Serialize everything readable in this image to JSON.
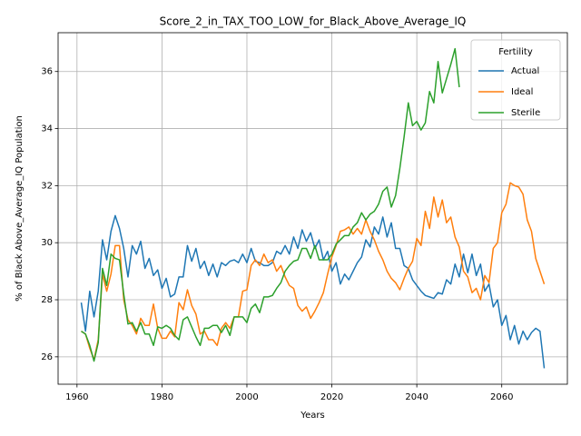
{
  "chart_data": {
    "type": "line",
    "title": "Score_2_in_TAX_TOO_LOW_for_Black_Above_Average_IQ",
    "x_label": "Years",
    "y_label": "% of Black Above_Average_IQ Population",
    "legend_title": "Fertility",
    "legend_position": "upper right",
    "grid": true,
    "xlim": [
      1955.55,
      2075.45
    ],
    "ylim": [
      25.04,
      37.36
    ],
    "xticks": [
      1960,
      1980,
      2000,
      2020,
      2040,
      2060
    ],
    "yticks": [
      26,
      28,
      30,
      32,
      34,
      36
    ],
    "x": [
      1961,
      1962,
      1963,
      1964,
      1965,
      1966,
      1967,
      1968,
      1969,
      1970,
      1971,
      1972,
      1973,
      1974,
      1975,
      1976,
      1977,
      1978,
      1979,
      1980,
      1981,
      1982,
      1983,
      1984,
      1985,
      1986,
      1987,
      1988,
      1989,
      1990,
      1991,
      1992,
      1993,
      1994,
      1995,
      1996,
      1997,
      1998,
      1999,
      2000,
      2001,
      2002,
      2003,
      2004,
      2005,
      2006,
      2007,
      2008,
      2009,
      2010,
      2011,
      2012,
      2013,
      2014,
      2015,
      2016,
      2017,
      2018,
      2019,
      2020,
      2021,
      2022,
      2023,
      2024,
      2025,
      2026,
      2027,
      2028,
      2029,
      2030,
      2031,
      2032,
      2033,
      2034,
      2035,
      2036,
      2037,
      2038,
      2039,
      2040,
      2041,
      2042,
      2043,
      2044,
      2045,
      2046,
      2047,
      2048,
      2049,
      2050,
      2051,
      2052,
      2053,
      2054,
      2055,
      2056,
      2057,
      2058,
      2059,
      2060,
      2061,
      2062,
      2063,
      2064,
      2065,
      2066,
      2067,
      2068,
      2069,
      2070
    ],
    "series": [
      {
        "name": "Actual",
        "color": "#1f77b4",
        "values": [
          27.9,
          26.9,
          28.3,
          27.4,
          28.3,
          30.1,
          29.4,
          30.4,
          30.95,
          30.5,
          29.8,
          28.8,
          29.9,
          29.6,
          30.05,
          29.1,
          29.45,
          28.85,
          29.05,
          28.4,
          28.75,
          28.1,
          28.2,
          28.8,
          28.8,
          29.9,
          29.35,
          29.8,
          29.1,
          29.35,
          28.85,
          29.25,
          28.8,
          29.3,
          29.2,
          29.35,
          29.4,
          29.3,
          29.6,
          29.3,
          29.8,
          29.35,
          29.3,
          29.2,
          29.2,
          29.3,
          29.7,
          29.6,
          29.9,
          29.6,
          30.2,
          29.8,
          30.45,
          30.05,
          30.35,
          29.8,
          30.1,
          29.4,
          29.7,
          29.0,
          29.3,
          28.55,
          28.9,
          28.7,
          29.0,
          29.3,
          29.5,
          30.1,
          29.85,
          30.55,
          30.3,
          30.9,
          30.2,
          30.7,
          29.8,
          29.8,
          29.2,
          29.1,
          28.7,
          28.5,
          28.3,
          28.15,
          28.1,
          28.05,
          28.25,
          28.2,
          28.7,
          28.55,
          29.25,
          28.8,
          29.6,
          28.95,
          29.6,
          28.85,
          29.25,
          28.3,
          28.55,
          27.75,
          28.0,
          27.1,
          27.45,
          26.6,
          27.1,
          26.45,
          26.9,
          26.6,
          26.85,
          27.0,
          26.9,
          25.6
        ]
      },
      {
        "name": "Ideal",
        "color": "#ff7f0e",
        "values": [
          26.9,
          26.8,
          26.3,
          25.9,
          26.6,
          28.9,
          28.3,
          28.9,
          29.9,
          29.9,
          28.0,
          27.3,
          27.1,
          26.8,
          27.35,
          27.1,
          27.1,
          27.85,
          27.0,
          26.65,
          26.65,
          26.9,
          26.7,
          27.9,
          27.65,
          28.35,
          27.8,
          27.5,
          26.8,
          26.9,
          26.6,
          26.6,
          26.4,
          27.0,
          27.2,
          27.0,
          27.4,
          27.4,
          28.3,
          28.35,
          29.2,
          29.4,
          29.2,
          29.6,
          29.3,
          29.4,
          29.0,
          29.2,
          28.8,
          28.5,
          28.4,
          27.8,
          27.6,
          27.75,
          27.35,
          27.6,
          27.9,
          28.25,
          28.9,
          29.5,
          29.9,
          30.4,
          30.45,
          30.55,
          30.3,
          30.5,
          30.3,
          30.8,
          30.4,
          30.1,
          29.7,
          29.4,
          29.0,
          28.75,
          28.6,
          28.35,
          28.75,
          29.1,
          29.35,
          30.15,
          29.9,
          31.1,
          30.5,
          31.6,
          30.9,
          31.5,
          30.7,
          30.9,
          30.2,
          29.85,
          29.0,
          28.8,
          28.25,
          28.4,
          28.0,
          28.85,
          28.6,
          29.8,
          30.0,
          31.05,
          31.35,
          32.1,
          32.0,
          31.95,
          31.7,
          30.8,
          30.4,
          29.45,
          29.0,
          28.55
        ]
      },
      {
        "name": "Sterile",
        "color": "#2ca02c",
        "values": [
          26.9,
          26.8,
          26.4,
          25.85,
          26.5,
          29.1,
          28.5,
          29.6,
          29.45,
          29.4,
          28.2,
          27.15,
          27.2,
          26.9,
          27.2,
          26.8,
          26.8,
          26.4,
          27.05,
          27.0,
          27.1,
          27.0,
          26.75,
          26.6,
          27.3,
          27.4,
          27.05,
          26.7,
          26.4,
          27.0,
          27.0,
          27.1,
          27.1,
          26.85,
          27.1,
          26.75,
          27.4,
          27.4,
          27.4,
          27.2,
          27.7,
          27.85,
          27.55,
          28.1,
          28.1,
          28.15,
          28.4,
          28.6,
          29.0,
          29.2,
          29.35,
          29.4,
          29.8,
          29.8,
          29.45,
          29.9,
          29.4,
          29.4,
          29.4,
          29.6,
          29.95,
          30.1,
          30.25,
          30.25,
          30.55,
          30.7,
          31.05,
          30.8,
          31.0,
          31.1,
          31.35,
          31.8,
          31.95,
          31.25,
          31.65,
          32.6,
          33.7,
          34.9,
          34.1,
          34.25,
          33.95,
          34.2,
          35.3,
          34.9,
          36.35,
          35.25,
          35.75,
          36.25,
          36.8,
          35.45,
          null,
          null,
          null,
          null,
          null,
          null,
          null,
          null,
          null,
          null,
          null,
          null,
          null,
          null,
          null,
          null,
          null,
          null,
          null,
          null
        ]
      }
    ]
  }
}
